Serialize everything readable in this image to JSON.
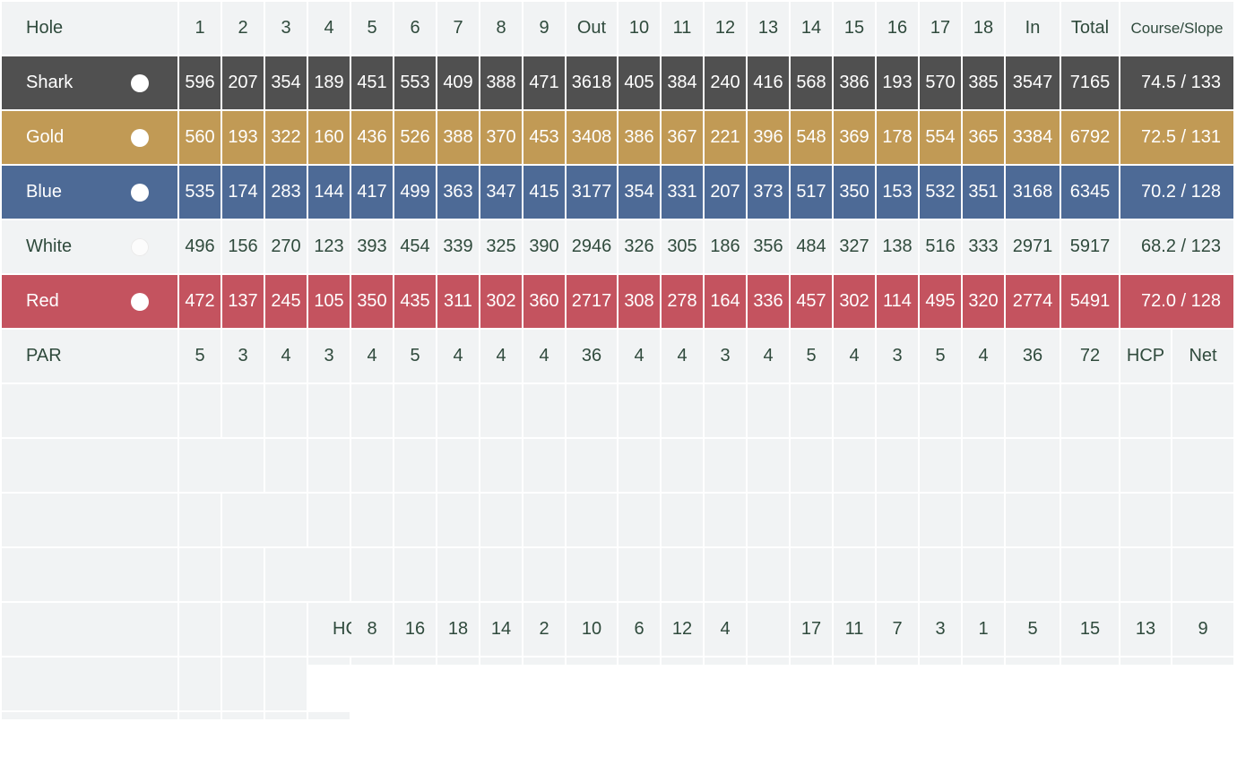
{
  "header": {
    "hole": "Hole",
    "holes_front": [
      "1",
      "2",
      "3",
      "4",
      "5",
      "6",
      "7",
      "8",
      "9"
    ],
    "out": "Out",
    "holes_back": [
      "10",
      "11",
      "12",
      "13",
      "14",
      "15",
      "16",
      "17",
      "18"
    ],
    "in": "In",
    "total": "Total",
    "course_slope": "Course/Slope"
  },
  "tees": [
    {
      "name": "Shark",
      "color": "#505050",
      "front": [
        "596",
        "207",
        "354",
        "189",
        "451",
        "553",
        "409",
        "388",
        "471"
      ],
      "out": "3618",
      "back": [
        "405",
        "384",
        "240",
        "416",
        "568",
        "386",
        "193",
        "570",
        "385"
      ],
      "in": "3547",
      "total": "7165",
      "rating": "74.5 / 133"
    },
    {
      "name": "Gold",
      "color": "#c19a55",
      "front": [
        "560",
        "193",
        "322",
        "160",
        "436",
        "526",
        "388",
        "370",
        "453"
      ],
      "out": "3408",
      "back": [
        "386",
        "367",
        "221",
        "396",
        "548",
        "369",
        "178",
        "554",
        "365"
      ],
      "in": "3384",
      "total": "6792",
      "rating": "72.5 / 131"
    },
    {
      "name": "Blue",
      "color": "#4d6a96",
      "front": [
        "535",
        "174",
        "283",
        "144",
        "417",
        "499",
        "363",
        "347",
        "415"
      ],
      "out": "3177",
      "back": [
        "354",
        "331",
        "207",
        "373",
        "517",
        "350",
        "153",
        "532",
        "351"
      ],
      "in": "3168",
      "total": "6345",
      "rating": "70.2 /  128"
    },
    {
      "name": "White",
      "color": "#f1f3f4",
      "front": [
        "496",
        "156",
        "270",
        "123",
        "393",
        "454",
        "339",
        "325",
        "390"
      ],
      "out": "2946",
      "back": [
        "326",
        "305",
        "186",
        "356",
        "484",
        "327",
        "138",
        "516",
        "333"
      ],
      "in": "2971",
      "total": "5917",
      "rating": "68.2 / 123"
    },
    {
      "name": "Red",
      "color": "#c4535f",
      "front": [
        "472",
        "137",
        "245",
        "105",
        "350",
        "435",
        "311",
        "302",
        "360"
      ],
      "out": "2717",
      "back": [
        "308",
        "278",
        "164",
        "336",
        "457",
        "302",
        "114",
        "495",
        "320"
      ],
      "in": "2774",
      "total": "5491",
      "rating": "72.0 / 128"
    }
  ],
  "par": {
    "label": "PAR",
    "front": [
      "5",
      "3",
      "4",
      "3",
      "4",
      "5",
      "4",
      "4",
      "4"
    ],
    "out": "36",
    "back": [
      "4",
      "4",
      "3",
      "4",
      "5",
      "4",
      "3",
      "5",
      "4"
    ],
    "in": "36",
    "total": "72",
    "hcp": "HCP",
    "net": "Net"
  },
  "hcp_index": {
    "label": "HCP Index",
    "front": [
      "8",
      "16",
      "18",
      "14",
      "2",
      "10",
      "6",
      "12",
      "4"
    ],
    "back": [
      "17",
      "11",
      "7",
      "3",
      "1",
      "5",
      "15",
      "13",
      "9"
    ]
  }
}
